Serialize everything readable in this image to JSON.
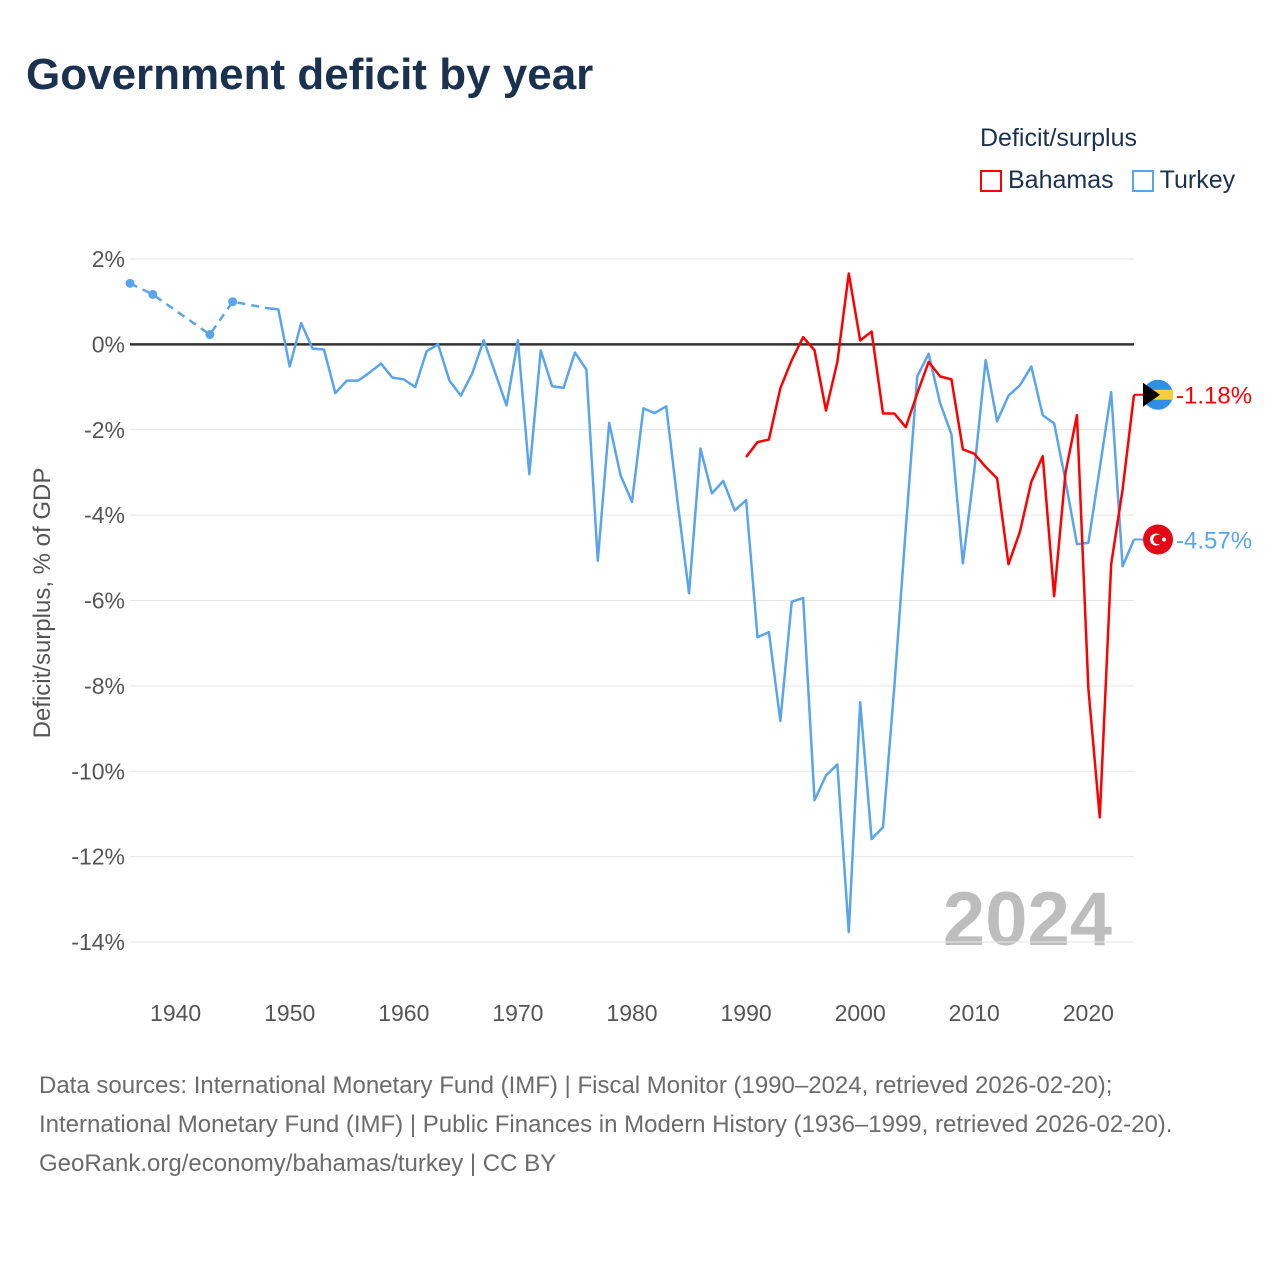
{
  "title": "Government deficit by year",
  "legend": {
    "title": "Deficit/surplus",
    "items": [
      {
        "label": "Bahamas",
        "color": "#ff0000"
      },
      {
        "label": "Turkey",
        "color": "#5aa5ea"
      }
    ]
  },
  "footer": {
    "sources": "Data sources: International Monetary Fund (IMF) | Fiscal Monitor (1990–2024, retrieved 2026-02-20); International Monetary Fund (IMF) | Public Finances in Modern History (1936–1999, retrieved 2026-02-20).",
    "credit": "GeoRank.org/economy/bahamas/turkey | CC BY"
  },
  "chart_data": {
    "type": "line",
    "title": "Government deficit by year",
    "xlabel": "",
    "ylabel": "Deficit/surplus, % of GDP",
    "xlim": [
      1936,
      2024
    ],
    "ylim": [
      -14,
      2
    ],
    "xticks": [
      1940,
      1950,
      1960,
      1970,
      1980,
      1990,
      2000,
      2010,
      2020
    ],
    "yticks": [
      2,
      0,
      -2,
      -4,
      -6,
      -8,
      -10,
      -12,
      -14
    ],
    "ytick_labels": [
      "2%",
      "0%",
      "-2%",
      "-4%",
      "-6%",
      "-8%",
      "-10%",
      "-12%",
      "-14%"
    ],
    "year_watermark": "2024",
    "grid": true,
    "legend_position": "top-right",
    "series": [
      {
        "name": "Bahamas",
        "color": "#ff0000",
        "end_label": "-1.18%",
        "x": [
          1990,
          1991,
          1992,
          1993,
          1994,
          1995,
          1996,
          1997,
          1998,
          1999,
          2000,
          2001,
          2002,
          2003,
          2004,
          2005,
          2006,
          2007,
          2008,
          2009,
          2010,
          2011,
          2012,
          2013,
          2014,
          2015,
          2016,
          2017,
          2018,
          2019,
          2020,
          2021,
          2022,
          2023,
          2024
        ],
        "y": [
          -2.64,
          -2.29,
          -2.23,
          -1.03,
          -0.37,
          0.17,
          -0.14,
          -1.55,
          -0.41,
          1.66,
          0.09,
          0.3,
          -1.62,
          -1.62,
          -1.94,
          -1.15,
          -0.41,
          -0.75,
          -0.82,
          -2.46,
          -2.56,
          -2.87,
          -3.14,
          -5.15,
          -4.39,
          -3.22,
          -2.62,
          -5.9,
          -3.0,
          -1.66,
          -8.06,
          -11.08,
          -5.15,
          -3.4,
          -1.18
        ]
      },
      {
        "name": "Turkey",
        "color": "#5aa5ea",
        "end_label": "-4.57%",
        "dashed_until": 1948,
        "marked_points": [
          1936,
          1938,
          1943,
          1945
        ],
        "x": [
          1936,
          1938,
          1943,
          1945,
          1948,
          1949,
          1950,
          1951,
          1952,
          1953,
          1954,
          1955,
          1956,
          1957,
          1958,
          1959,
          1960,
          1961,
          1962,
          1963,
          1964,
          1965,
          1966,
          1967,
          1968,
          1969,
          1970,
          1971,
          1972,
          1973,
          1974,
          1975,
          1976,
          1977,
          1978,
          1979,
          1980,
          1981,
          1982,
          1983,
          1984,
          1985,
          1986,
          1987,
          1988,
          1989,
          1990,
          1991,
          1992,
          1993,
          1994,
          1995,
          1996,
          1997,
          1998,
          1999,
          2000,
          2001,
          2002,
          2003,
          2004,
          2005,
          2006,
          2007,
          2008,
          2009,
          2010,
          2011,
          2012,
          2013,
          2014,
          2015,
          2016,
          2017,
          2018,
          2019,
          2020,
          2021,
          2022,
          2023,
          2024
        ],
        "y": [
          1.43,
          1.17,
          0.23,
          1.0,
          0.85,
          0.82,
          -0.52,
          0.5,
          -0.1,
          -0.12,
          -1.14,
          -0.85,
          -0.85,
          -0.66,
          -0.45,
          -0.78,
          -0.82,
          -1.0,
          -0.16,
          0.0,
          -0.85,
          -1.2,
          -0.68,
          0.1,
          -0.66,
          -1.43,
          0.1,
          -3.04,
          -0.14,
          -0.98,
          -1.02,
          -0.19,
          -0.59,
          -5.07,
          -1.84,
          -3.07,
          -3.69,
          -1.5,
          -1.61,
          -1.45,
          -3.7,
          -5.83,
          -2.44,
          -3.49,
          -3.2,
          -3.89,
          -3.65,
          -6.86,
          -6.74,
          -8.82,
          -6.03,
          -5.94,
          -10.68,
          -10.1,
          -9.84,
          -13.77,
          -8.38,
          -11.59,
          -11.31,
          -8.0,
          -4.3,
          -0.75,
          -0.22,
          -1.37,
          -2.11,
          -5.13,
          -2.95,
          -0.37,
          -1.8,
          -1.2,
          -0.96,
          -0.52,
          -1.66,
          -1.85,
          -3.2,
          -4.68,
          -4.65,
          -2.9,
          -1.12,
          -5.2,
          -4.57
        ]
      }
    ]
  }
}
